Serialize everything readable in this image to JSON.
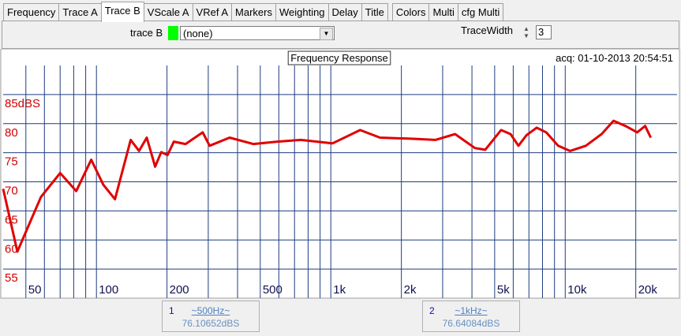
{
  "tabs": [
    "Frequency",
    "Trace A",
    "Trace B",
    "VScale A",
    "VRef A",
    "Markers",
    "Weighting",
    "Delay",
    "Title",
    "Colors",
    "Multi",
    "cfg Multi"
  ],
  "controls": {
    "trace_label": "trace B",
    "trace_color": "#00ff00",
    "trace_select": "(none)",
    "width_label": "TraceWidth",
    "width_value": "3"
  },
  "chart_data": {
    "type": "line",
    "title": "Frequency Response",
    "acquired": "acq: 01-10-2013 20:54:51",
    "x": [
      40,
      46,
      58,
      70,
      82,
      95,
      107,
      120,
      140,
      152,
      164,
      178,
      189,
      201,
      214,
      240,
      284,
      304,
      370,
      467,
      589,
      744,
      1016,
      1334,
      1620,
      2211,
      2793,
      3390,
      4117,
      4558,
      5324,
      5843,
      6318,
      6830,
      7557,
      8300,
      9330,
      10480,
      12240,
      14300,
      16070,
      18070,
      20280,
      21930,
      23170
    ],
    "values": [
      68.8,
      58,
      67.4,
      71.5,
      68.4,
      73.8,
      69.5,
      67,
      77.2,
      75.3,
      77.6,
      72.6,
      75.1,
      74.6,
      76.9,
      76.5,
      78.5,
      76.2,
      77.6,
      76.5,
      76.9,
      77.2,
      76.6,
      78.9,
      77.6,
      77.4,
      77.2,
      78.2,
      75.8,
      75.5,
      78.9,
      78.2,
      76.2,
      78,
      79.3,
      78.5,
      76.2,
      75.3,
      76.2,
      78.2,
      80.5,
      79.6,
      78.5,
      79.6,
      77.6
    ],
    "color": "#e00000",
    "xscale": "log",
    "grid": true,
    "xlim": [
      40,
      30000
    ],
    "xticks": [
      50,
      100,
      200,
      500,
      {
        "value": 1000,
        "label": "1k"
      },
      {
        "value": 2000,
        "label": "2k"
      },
      {
        "value": 5000,
        "label": "5k"
      },
      {
        "value": 10000,
        "label": "10k"
      },
      {
        "value": 20000,
        "label": "20k"
      }
    ],
    "xminor": [
      60,
      70,
      80,
      90,
      300,
      400,
      600,
      700,
      800,
      900,
      3000,
      4000,
      6000,
      7000,
      8000,
      9000
    ],
    "ylim": [
      50,
      90
    ],
    "yticks": [
      55,
      60,
      65,
      70,
      75,
      80,
      {
        "value": 85,
        "label": "85dBS"
      }
    ]
  },
  "markers": [
    {
      "index": "1",
      "freq": "~500Hz~",
      "value": "76.10652dBS"
    },
    {
      "index": "2",
      "freq": "~1kHz~",
      "value": "76.64084dBS"
    }
  ]
}
